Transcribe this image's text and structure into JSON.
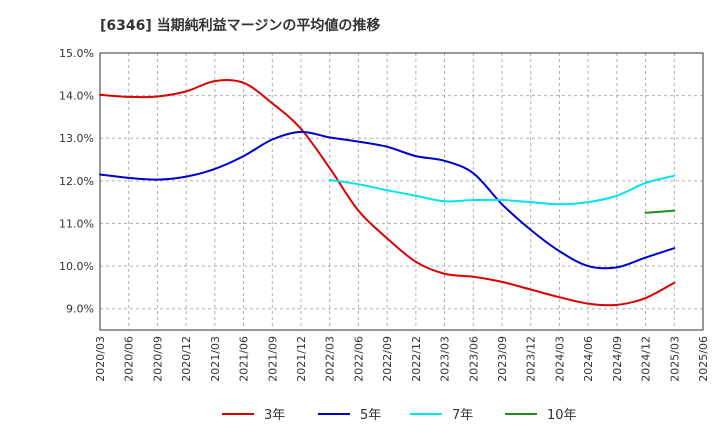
{
  "chart_data": {
    "type": "line",
    "title": "[6346]  当期純利益マージンの平均値の推移",
    "xlabel": "",
    "ylabel": "",
    "ylim": [
      8.5,
      15.0
    ],
    "y_ticks": [
      "9.0%",
      "10.0%",
      "11.0%",
      "12.0%",
      "13.0%",
      "14.0%",
      "15.0%"
    ],
    "y_tick_values": [
      9.0,
      10.0,
      11.0,
      12.0,
      13.0,
      14.0,
      15.0
    ],
    "x_ticks": [
      "2020/03",
      "2020/06",
      "2020/09",
      "2020/12",
      "2021/03",
      "2021/06",
      "2021/09",
      "2021/12",
      "2022/03",
      "2022/06",
      "2022/09",
      "2022/12",
      "2023/03",
      "2023/06",
      "2023/09",
      "2023/12",
      "2024/03",
      "2024/06",
      "2024/09",
      "2024/12",
      "2025/03",
      "2025/06"
    ],
    "grid": true,
    "legend_position": "bottom",
    "series": [
      {
        "name": "3年",
        "color": "#dd0000",
        "x": [
          "2020/03",
          "2020/06",
          "2020/09",
          "2020/12",
          "2021/03",
          "2021/06",
          "2021/09",
          "2021/12",
          "2022/03",
          "2022/06",
          "2022/09",
          "2022/12",
          "2023/03",
          "2023/06",
          "2023/09",
          "2023/12",
          "2024/03",
          "2024/06",
          "2024/09",
          "2024/12",
          "2025/03"
        ],
        "values": [
          14.02,
          13.97,
          13.98,
          14.1,
          14.34,
          14.3,
          13.82,
          13.22,
          12.3,
          11.3,
          10.65,
          10.1,
          9.82,
          9.75,
          9.63,
          9.45,
          9.27,
          9.12,
          9.09,
          9.25,
          9.61
        ]
      },
      {
        "name": "5年",
        "color": "#0000cc",
        "x": [
          "2020/03",
          "2020/06",
          "2020/09",
          "2020/12",
          "2021/03",
          "2021/06",
          "2021/09",
          "2021/12",
          "2022/03",
          "2022/06",
          "2022/09",
          "2022/12",
          "2023/03",
          "2023/06",
          "2023/09",
          "2023/12",
          "2024/03",
          "2024/06",
          "2024/09",
          "2024/12",
          "2025/03"
        ],
        "values": [
          12.15,
          12.07,
          12.03,
          12.1,
          12.28,
          12.58,
          12.97,
          13.15,
          13.02,
          12.92,
          12.8,
          12.58,
          12.47,
          12.18,
          11.45,
          10.85,
          10.35,
          10.0,
          9.97,
          10.2,
          10.42
        ]
      },
      {
        "name": "7年",
        "color": "#00e5ee",
        "x": [
          "2022/03",
          "2022/06",
          "2022/09",
          "2022/12",
          "2023/03",
          "2023/06",
          "2023/09",
          "2023/12",
          "2024/03",
          "2024/06",
          "2024/09",
          "2024/12",
          "2025/03"
        ],
        "values": [
          12.02,
          11.92,
          11.78,
          11.65,
          11.52,
          11.55,
          11.55,
          11.5,
          11.45,
          11.5,
          11.65,
          11.95,
          12.12
        ]
      },
      {
        "name": "10年",
        "color": "#228b22",
        "x": [
          "2024/12",
          "2025/03"
        ],
        "values": [
          11.25,
          11.3
        ]
      }
    ]
  }
}
